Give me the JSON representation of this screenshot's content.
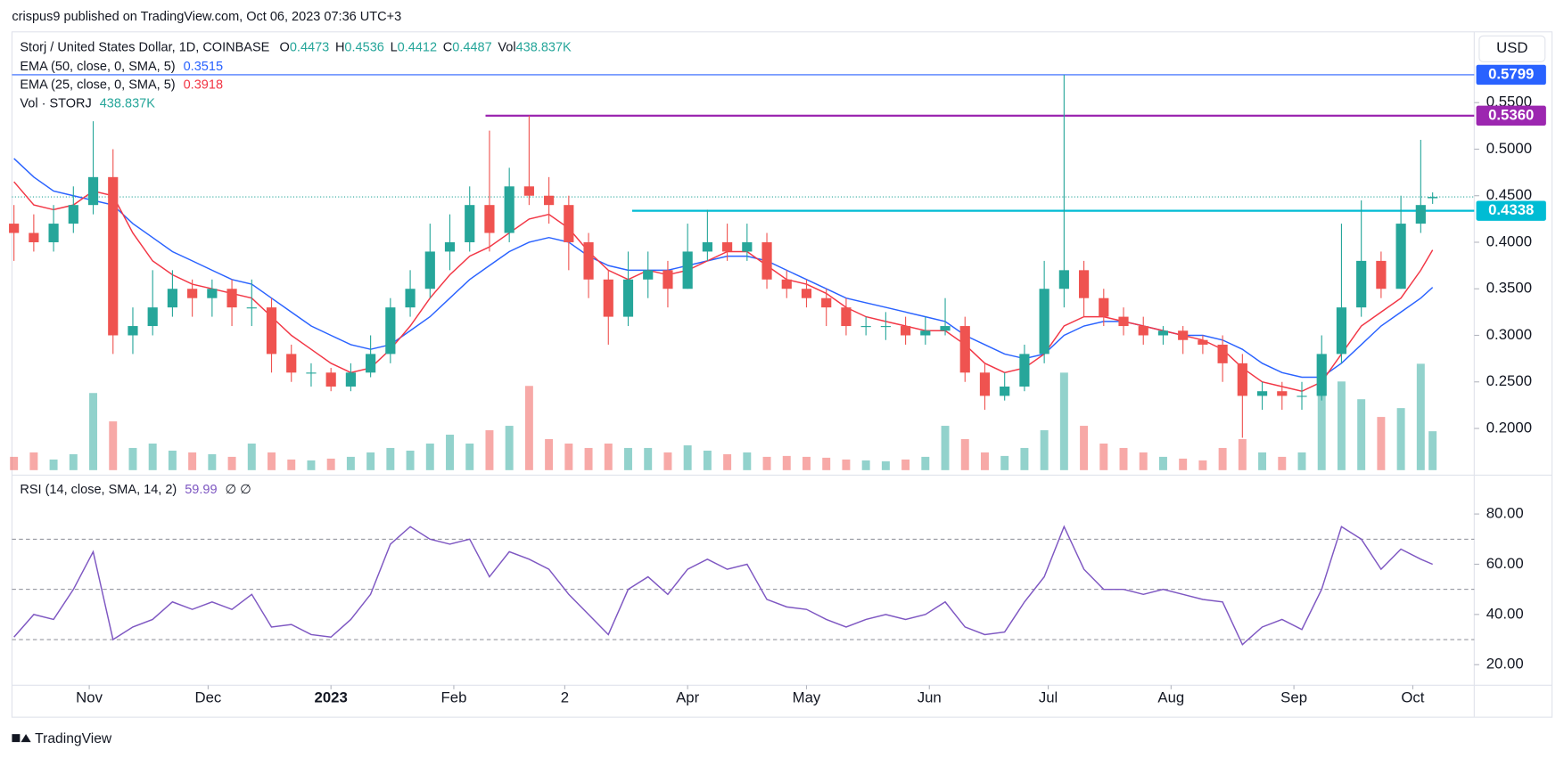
{
  "header": {
    "published": "crispus9 published on TradingView.com, Oct 06, 2023 07:36 UTC+3",
    "footer": "TradingView"
  },
  "chart_data": [
    {
      "type": "candlestick",
      "title": "Storj / United States Dollar, 1D, COINBASE",
      "currency": "USD",
      "x": [
        0,
        5,
        10,
        15,
        20,
        25,
        30,
        35,
        40,
        45,
        50,
        55,
        60,
        65,
        70,
        75,
        80,
        85,
        90,
        95,
        100,
        105,
        110,
        115,
        120,
        125,
        130,
        135,
        140,
        145,
        150,
        155,
        160,
        165,
        170,
        175,
        180,
        185,
        190,
        195,
        200,
        205,
        210,
        215,
        220,
        225,
        230,
        235,
        240,
        245,
        250,
        255,
        260,
        265,
        270,
        275,
        280,
        285,
        290,
        295,
        300,
        305,
        310,
        315,
        320,
        325,
        330,
        335,
        340,
        345,
        350,
        355,
        358
      ],
      "xlim": [
        -0.5,
        368.5
      ],
      "xticks": [
        {
          "value": 19,
          "label": "Nov"
        },
        {
          "value": 49,
          "label": "Dec"
        },
        {
          "value": 80,
          "label": "2023"
        },
        {
          "value": 111,
          "label": "Feb"
        },
        {
          "value": 139,
          "label": "2"
        },
        {
          "value": 170,
          "label": "Apr"
        },
        {
          "value": 200,
          "label": "May"
        },
        {
          "value": 231,
          "label": "Jun"
        },
        {
          "value": 261,
          "label": "Jul"
        },
        {
          "value": 292,
          "label": "Aug"
        },
        {
          "value": 323,
          "label": "Sep"
        },
        {
          "value": 353,
          "label": "Oct"
        }
      ],
      "ohlc_labels": [
        "O",
        "H",
        "L",
        "C"
      ],
      "open": [
        0.42,
        0.41,
        0.4,
        0.42,
        0.44,
        0.47,
        0.3,
        0.31,
        0.33,
        0.35,
        0.34,
        0.35,
        0.33,
        0.33,
        0.28,
        0.26,
        0.26,
        0.245,
        0.26,
        0.28,
        0.33,
        0.35,
        0.39,
        0.4,
        0.44,
        0.41,
        0.46,
        0.45,
        0.44,
        0.4,
        0.36,
        0.32,
        0.36,
        0.37,
        0.35,
        0.39,
        0.4,
        0.39,
        0.4,
        0.36,
        0.35,
        0.34,
        0.33,
        0.31,
        0.31,
        0.31,
        0.3,
        0.305,
        0.31,
        0.26,
        0.235,
        0.245,
        0.28,
        0.35,
        0.37,
        0.34,
        0.32,
        0.31,
        0.3,
        0.305,
        0.295,
        0.29,
        0.27,
        0.235,
        0.24,
        0.235,
        0.235,
        0.28,
        0.33,
        0.38,
        0.35,
        0.42,
        0.4473
      ],
      "high": [
        0.44,
        0.43,
        0.44,
        0.46,
        0.53,
        0.5,
        0.33,
        0.37,
        0.37,
        0.36,
        0.36,
        0.36,
        0.36,
        0.34,
        0.29,
        0.27,
        0.265,
        0.27,
        0.3,
        0.34,
        0.37,
        0.42,
        0.43,
        0.46,
        0.52,
        0.48,
        0.536,
        0.47,
        0.45,
        0.41,
        0.37,
        0.39,
        0.39,
        0.38,
        0.42,
        0.435,
        0.42,
        0.42,
        0.41,
        0.37,
        0.36,
        0.35,
        0.34,
        0.32,
        0.325,
        0.32,
        0.32,
        0.34,
        0.32,
        0.27,
        0.26,
        0.29,
        0.38,
        0.5799,
        0.38,
        0.35,
        0.33,
        0.32,
        0.31,
        0.31,
        0.3,
        0.3,
        0.28,
        0.25,
        0.25,
        0.25,
        0.3,
        0.42,
        0.445,
        0.39,
        0.45,
        0.51,
        0.4536
      ],
      "low": [
        0.38,
        0.39,
        0.39,
        0.41,
        0.43,
        0.28,
        0.28,
        0.3,
        0.32,
        0.32,
        0.32,
        0.31,
        0.31,
        0.26,
        0.25,
        0.245,
        0.24,
        0.24,
        0.255,
        0.27,
        0.32,
        0.34,
        0.37,
        0.39,
        0.39,
        0.4,
        0.44,
        0.42,
        0.37,
        0.34,
        0.29,
        0.31,
        0.34,
        0.33,
        0.35,
        0.38,
        0.38,
        0.38,
        0.35,
        0.34,
        0.33,
        0.31,
        0.3,
        0.3,
        0.295,
        0.29,
        0.29,
        0.3,
        0.25,
        0.22,
        0.23,
        0.24,
        0.27,
        0.33,
        0.32,
        0.31,
        0.3,
        0.29,
        0.29,
        0.28,
        0.28,
        0.25,
        0.19,
        0.22,
        0.22,
        0.22,
        0.23,
        0.27,
        0.32,
        0.34,
        0.35,
        0.41,
        0.4412
      ],
      "close": [
        0.41,
        0.4,
        0.42,
        0.44,
        0.47,
        0.3,
        0.31,
        0.33,
        0.35,
        0.34,
        0.35,
        0.33,
        0.33,
        0.28,
        0.26,
        0.26,
        0.245,
        0.26,
        0.28,
        0.33,
        0.35,
        0.39,
        0.4,
        0.44,
        0.41,
        0.46,
        0.45,
        0.44,
        0.4,
        0.36,
        0.32,
        0.36,
        0.37,
        0.35,
        0.39,
        0.4,
        0.39,
        0.4,
        0.36,
        0.35,
        0.34,
        0.33,
        0.31,
        0.31,
        0.31,
        0.3,
        0.305,
        0.31,
        0.26,
        0.235,
        0.245,
        0.28,
        0.35,
        0.37,
        0.34,
        0.32,
        0.31,
        0.3,
        0.305,
        0.295,
        0.29,
        0.27,
        0.235,
        0.24,
        0.235,
        0.235,
        0.28,
        0.33,
        0.38,
        0.35,
        0.42,
        0.44,
        0.4487
      ],
      "up_color": "#26a69a",
      "down_color": "#ef5350",
      "ylim": [
        0.152,
        0.626
      ],
      "yticks": [
        {
          "value": 0.2,
          "label": "0.2000"
        },
        {
          "value": 0.25,
          "label": "0.2500"
        },
        {
          "value": 0.3,
          "label": "0.3000"
        },
        {
          "value": 0.35,
          "label": "0.3500"
        },
        {
          "value": 0.4,
          "label": "0.4000"
        },
        {
          "value": 0.45,
          "label": "0.4500"
        },
        {
          "value": 0.5,
          "label": "0.5000"
        },
        {
          "value": 0.55,
          "label": "0.5500"
        }
      ],
      "overlays": [
        {
          "name": "EMA (50, close, 0, SMA, 5)",
          "color": "#2962ff",
          "values": [
            0.49,
            0.47,
            0.455,
            0.45,
            0.445,
            0.44,
            0.42,
            0.405,
            0.39,
            0.38,
            0.37,
            0.36,
            0.355,
            0.34,
            0.325,
            0.31,
            0.3,
            0.29,
            0.285,
            0.29,
            0.305,
            0.32,
            0.34,
            0.36,
            0.375,
            0.39,
            0.4,
            0.405,
            0.4,
            0.385,
            0.375,
            0.37,
            0.37,
            0.37,
            0.375,
            0.38,
            0.385,
            0.385,
            0.38,
            0.37,
            0.36,
            0.35,
            0.34,
            0.335,
            0.33,
            0.325,
            0.32,
            0.315,
            0.3,
            0.29,
            0.28,
            0.275,
            0.28,
            0.3,
            0.31,
            0.315,
            0.315,
            0.31,
            0.305,
            0.3,
            0.3,
            0.295,
            0.285,
            0.27,
            0.26,
            0.255,
            0.255,
            0.27,
            0.29,
            0.31,
            0.325,
            0.34,
            0.3515
          ]
        },
        {
          "name": "EMA (25, close, 0, SMA, 5)",
          "color": "#f23645",
          "values": [
            0.465,
            0.44,
            0.435,
            0.44,
            0.455,
            0.45,
            0.41,
            0.38,
            0.365,
            0.355,
            0.35,
            0.345,
            0.34,
            0.32,
            0.3,
            0.285,
            0.27,
            0.26,
            0.265,
            0.285,
            0.31,
            0.34,
            0.365,
            0.385,
            0.395,
            0.41,
            0.425,
            0.43,
            0.415,
            0.39,
            0.37,
            0.36,
            0.37,
            0.365,
            0.37,
            0.38,
            0.39,
            0.39,
            0.375,
            0.36,
            0.355,
            0.345,
            0.33,
            0.32,
            0.315,
            0.31,
            0.305,
            0.305,
            0.29,
            0.27,
            0.26,
            0.265,
            0.28,
            0.31,
            0.32,
            0.32,
            0.315,
            0.31,
            0.305,
            0.3,
            0.295,
            0.285,
            0.265,
            0.25,
            0.245,
            0.24,
            0.25,
            0.28,
            0.31,
            0.325,
            0.34,
            0.37,
            0.3918
          ]
        }
      ],
      "volume": {
        "name": "Vol · STORJ",
        "prefix": "Vol",
        "last_label": "438.837K",
        "ylim": [
          0,
          4000000
        ],
        "values": [
          150000,
          200000,
          120000,
          180000,
          870000,
          550000,
          250000,
          300000,
          220000,
          200000,
          180000,
          150000,
          300000,
          200000,
          120000,
          110000,
          130000,
          150000,
          200000,
          250000,
          220000,
          300000,
          400000,
          300000,
          450000,
          500000,
          950000,
          350000,
          300000,
          250000,
          300000,
          250000,
          250000,
          200000,
          280000,
          220000,
          180000,
          200000,
          150000,
          160000,
          150000,
          140000,
          120000,
          110000,
          100000,
          120000,
          150000,
          500000,
          350000,
          200000,
          160000,
          250000,
          450000,
          1100000,
          500000,
          300000,
          250000,
          200000,
          150000,
          130000,
          110000,
          250000,
          350000,
          200000,
          150000,
          200000,
          850000,
          1000000,
          800000,
          600000,
          700000,
          1200000,
          438837
        ]
      },
      "levels": [
        {
          "value": 0.5799,
          "x_start": -0.5,
          "color": "#2962ff"
        },
        {
          "value": {
            "value": 0.536,
            "label": "0.5360"
          },
          "x_start": 119,
          "color": "#9c27b0"
        },
        {
          "value": 0.4338,
          "x_start": 156,
          "color": "#00bcd4"
        }
      ]
    },
    {
      "type": "line",
      "name": "RSI (14, close, SMA, 14, 2)",
      "extra": "∅ ∅",
      "color": "#7e57c2",
      "x": [
        0,
        5,
        10,
        15,
        20,
        25,
        30,
        35,
        40,
        45,
        50,
        55,
        60,
        65,
        70,
        75,
        80,
        85,
        90,
        95,
        100,
        105,
        110,
        115,
        120,
        125,
        130,
        135,
        140,
        145,
        150,
        155,
        160,
        165,
        170,
        175,
        180,
        185,
        190,
        195,
        200,
        205,
        210,
        215,
        220,
        225,
        230,
        235,
        240,
        245,
        250,
        255,
        260,
        265,
        270,
        275,
        280,
        285,
        290,
        295,
        300,
        305,
        310,
        315,
        320,
        325,
        330,
        335,
        340,
        345,
        350,
        355,
        358
      ],
      "xlim": [
        -0.5,
        368.5
      ],
      "values": [
        31,
        40,
        38,
        50,
        65,
        30,
        35,
        38,
        45,
        42,
        45,
        42,
        48,
        35,
        36,
        32,
        31,
        38,
        48,
        68,
        75,
        70,
        68,
        70,
        55,
        65,
        62,
        58,
        48,
        40,
        32,
        50,
        55,
        48,
        58,
        62,
        58,
        60,
        46,
        43,
        42,
        38,
        35,
        38,
        40,
        38,
        40,
        45,
        35,
        32,
        33,
        45,
        55,
        75,
        58,
        50,
        50,
        48,
        50,
        48,
        46,
        45,
        28,
        35,
        38,
        34,
        50,
        75,
        70,
        58,
        66,
        62,
        59.99
      ],
      "ylim": [
        11,
        94.3
      ],
      "yticks": [
        {
          "value": 20,
          "label": "20.00"
        },
        {
          "value": 40,
          "label": "40.00"
        },
        {
          "value": 60,
          "label": "60.00"
        },
        {
          "value": 80,
          "label": "80.00"
        }
      ],
      "bands": [
        30,
        50,
        70
      ]
    }
  ]
}
